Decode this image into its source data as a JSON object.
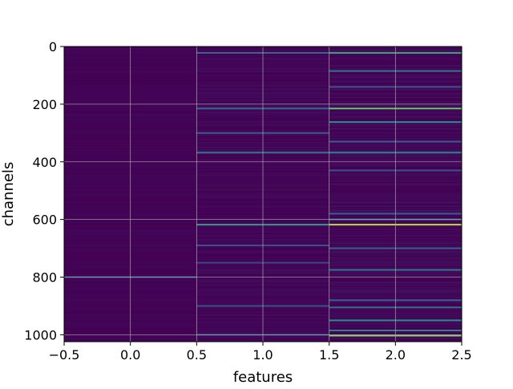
{
  "chart_data": {
    "type": "heatmap",
    "title": "",
    "xlabel": "features",
    "ylabel": "channels",
    "xlim": [
      -0.5,
      2.5
    ],
    "ylim": [
      1024,
      0
    ],
    "y_inverted": true,
    "x_ticks": [
      -0.5,
      0.0,
      0.5,
      1.0,
      1.5,
      2.0,
      2.5
    ],
    "x_tick_labels": [
      "−0.5",
      "0.0",
      "0.5",
      "1.0",
      "1.5",
      "2.0",
      "2.5"
    ],
    "y_ticks": [
      0,
      200,
      400,
      600,
      800,
      1000
    ],
    "y_tick_labels": [
      "0",
      "200",
      "400",
      "600",
      "800",
      "1000"
    ],
    "grid": true,
    "colormap": "viridis",
    "n_channels": 1024,
    "n_features": 3,
    "base_color": "#440154",
    "columns": [
      {
        "feature": 0,
        "bright_channels": [
          {
            "channel": 800,
            "value": 0.3
          }
        ]
      },
      {
        "feature": 1,
        "bright_channels": [
          {
            "channel": 22,
            "value": 0.35
          },
          {
            "channel": 215,
            "value": 0.35
          },
          {
            "channel": 300,
            "value": 0.28
          },
          {
            "channel": 368,
            "value": 0.4
          },
          {
            "channel": 618,
            "value": 0.55
          },
          {
            "channel": 690,
            "value": 0.25
          },
          {
            "channel": 750,
            "value": 0.22
          },
          {
            "channel": 900,
            "value": 0.25
          },
          {
            "channel": 1000,
            "value": 0.3
          }
        ]
      },
      {
        "feature": 2,
        "bright_channels": [
          {
            "channel": 22,
            "value": 0.6
          },
          {
            "channel": 85,
            "value": 0.4
          },
          {
            "channel": 140,
            "value": 0.25
          },
          {
            "channel": 215,
            "value": 0.75
          },
          {
            "channel": 262,
            "value": 0.5
          },
          {
            "channel": 330,
            "value": 0.3
          },
          {
            "channel": 368,
            "value": 0.45
          },
          {
            "channel": 430,
            "value": 0.25
          },
          {
            "channel": 580,
            "value": 0.3
          },
          {
            "channel": 600,
            "value": 0.35
          },
          {
            "channel": 618,
            "value": 0.9
          },
          {
            "channel": 700,
            "value": 0.3
          },
          {
            "channel": 775,
            "value": 0.4
          },
          {
            "channel": 880,
            "value": 0.3
          },
          {
            "channel": 905,
            "value": 0.35
          },
          {
            "channel": 950,
            "value": 0.5
          },
          {
            "channel": 985,
            "value": 0.45
          },
          {
            "channel": 1003,
            "value": 0.8
          }
        ]
      }
    ]
  }
}
